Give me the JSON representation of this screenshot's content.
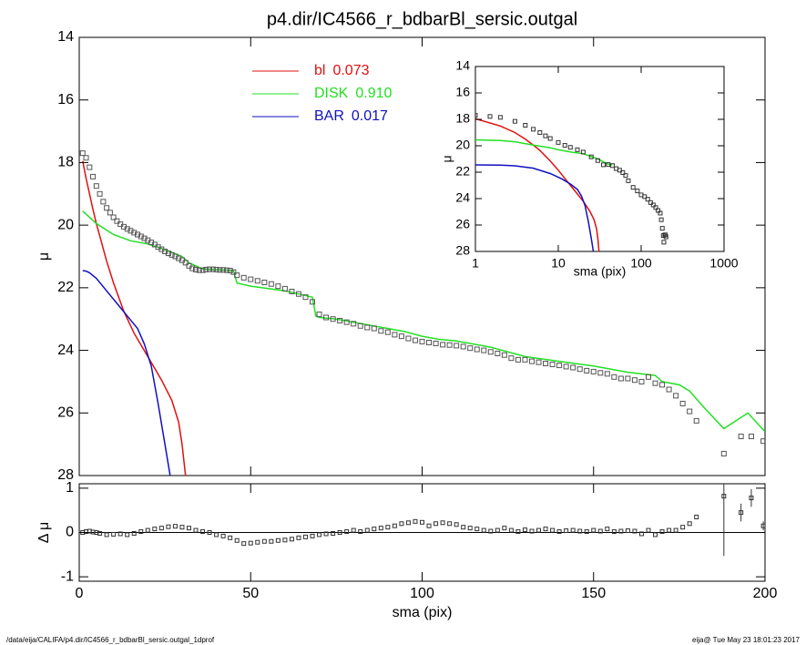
{
  "chart_data": [
    {
      "type": "line",
      "title": "p4.dir/IC4566_r_bdbarBl_sersic.outgal",
      "ylabel": "μ",
      "xlim": [
        0,
        200
      ],
      "xticks": [
        0,
        50,
        100,
        150,
        200
      ],
      "xtick_labels": false,
      "ylim": [
        14,
        28
      ],
      "yticks": [
        14,
        16,
        18,
        20,
        22,
        24,
        26,
        28
      ],
      "invert_y": true,
      "legend": "upper-center",
      "points": {
        "color": "#555555",
        "x": [
          1,
          2,
          3,
          4,
          5,
          6,
          7,
          8,
          9,
          10,
          11,
          12,
          13,
          14,
          15,
          16,
          17,
          18,
          19,
          20,
          21,
          22,
          23,
          24,
          25,
          26,
          27,
          28,
          29,
          30,
          31,
          32,
          33,
          34,
          35,
          36,
          37,
          38,
          39,
          40,
          41,
          42,
          43,
          44,
          45,
          46,
          48,
          50,
          52,
          54,
          56,
          58,
          60,
          62,
          64,
          66,
          68,
          70,
          72,
          74,
          76,
          78,
          80,
          82,
          84,
          86,
          88,
          90,
          92,
          94,
          96,
          98,
          100,
          102,
          104,
          106,
          108,
          110,
          112,
          114,
          116,
          118,
          120,
          122,
          124,
          126,
          128,
          130,
          132,
          134,
          136,
          138,
          140,
          142,
          144,
          146,
          148,
          150,
          152,
          154,
          156,
          158,
          160,
          162,
          164,
          166,
          168,
          170,
          172,
          174,
          176,
          178,
          180,
          188,
          193,
          196,
          199.5
        ],
        "values": [
          17.7,
          17.85,
          18.15,
          18.45,
          18.75,
          19.0,
          19.25,
          19.45,
          19.6,
          19.75,
          19.87,
          19.97,
          20.05,
          20.12,
          20.18,
          20.24,
          20.3,
          20.36,
          20.42,
          20.48,
          20.55,
          20.62,
          20.7,
          20.77,
          20.84,
          20.9,
          20.95,
          21.0,
          21.06,
          21.12,
          21.2,
          21.3,
          21.38,
          21.42,
          21.44,
          21.44,
          21.42,
          21.41,
          21.41,
          21.42,
          21.43,
          21.43,
          21.44,
          21.45,
          21.5,
          21.6,
          21.68,
          21.73,
          21.78,
          21.83,
          21.88,
          21.95,
          22.03,
          22.12,
          22.2,
          22.3,
          22.45,
          22.85,
          22.95,
          23.0,
          23.05,
          23.1,
          23.15,
          23.22,
          23.27,
          23.3,
          23.38,
          23.42,
          23.5,
          23.55,
          23.62,
          23.68,
          23.72,
          23.75,
          23.78,
          23.82,
          23.83,
          23.85,
          23.88,
          23.93,
          23.97,
          24.0,
          24.05,
          24.1,
          24.15,
          24.25,
          24.3,
          24.3,
          24.35,
          24.38,
          24.42,
          24.45,
          24.48,
          24.52,
          24.55,
          24.6,
          24.65,
          24.68,
          24.72,
          24.75,
          24.85,
          24.9,
          24.9,
          24.95,
          25.0,
          24.85,
          25.05,
          25.1,
          25.25,
          25.45,
          25.7,
          25.95,
          26.25,
          27.3,
          26.75,
          26.75,
          26.9
        ]
      },
      "series": [
        {
          "name": "bl",
          "fraction": 0.073,
          "fraction_label": "0.073",
          "color": "#e01010",
          "x": [
            1,
            2,
            3,
            4,
            5,
            6,
            8,
            10,
            13,
            16,
            20,
            24,
            27,
            29,
            30,
            31
          ],
          "values": [
            17.95,
            18.5,
            19.0,
            19.5,
            19.95,
            20.35,
            21.15,
            21.85,
            22.75,
            23.45,
            24.2,
            24.95,
            25.6,
            26.3,
            27.0,
            28.0
          ]
        },
        {
          "name": "DISK",
          "fraction": 0.91,
          "fraction_label": "0.910",
          "color": "#22e022",
          "x": [
            1,
            5,
            10,
            15,
            20,
            25,
            30,
            32,
            36,
            45,
            46,
            50,
            60,
            68,
            69,
            70,
            75,
            85,
            95,
            100,
            105,
            110,
            120,
            130,
            140,
            150,
            160,
            168,
            170,
            175,
            178,
            182,
            188,
            195,
            200
          ],
          "values": [
            19.55,
            19.95,
            20.3,
            20.5,
            20.6,
            20.78,
            21.0,
            21.2,
            21.4,
            21.45,
            21.85,
            21.95,
            22.1,
            22.3,
            22.9,
            22.95,
            23.0,
            23.2,
            23.4,
            23.55,
            23.65,
            23.7,
            23.9,
            24.2,
            24.35,
            24.5,
            24.7,
            24.8,
            25.0,
            25.1,
            25.3,
            25.8,
            26.5,
            26.0,
            26.6
          ]
        },
        {
          "name": "BAR",
          "fraction": 0.017,
          "fraction_label": "0.017",
          "color": "#1010c0",
          "x": [
            1,
            2,
            3,
            5,
            8,
            11,
            14,
            17,
            19,
            21,
            23,
            25,
            26.5
          ],
          "values": [
            21.45,
            21.47,
            21.52,
            21.7,
            22.1,
            22.5,
            22.9,
            23.3,
            23.8,
            24.5,
            25.7,
            27.0,
            28.0
          ]
        }
      ]
    },
    {
      "type": "scatter",
      "xlabel": "sma (pix)",
      "ylabel": "Δ μ",
      "xlim": [
        0,
        200
      ],
      "xticks": [
        0,
        50,
        100,
        150,
        200
      ],
      "xtick_labels": true,
      "ylim": [
        -1.1,
        1.1
      ],
      "yticks": [
        -1,
        0,
        1
      ],
      "reference_line": 0,
      "points": {
        "color": "#333333",
        "x": [
          1,
          2,
          3,
          4,
          5,
          6,
          8,
          10,
          12,
          14,
          16,
          18,
          20,
          22,
          24,
          26,
          28,
          30,
          32,
          34,
          36,
          38,
          40,
          42,
          44,
          46,
          48,
          50,
          52,
          54,
          56,
          58,
          60,
          62,
          64,
          66,
          68,
          70,
          72,
          74,
          76,
          78,
          80,
          82,
          84,
          86,
          88,
          90,
          92,
          94,
          96,
          98,
          100,
          102,
          104,
          106,
          108,
          110,
          112,
          114,
          116,
          118,
          120,
          122,
          124,
          126,
          128,
          130,
          132,
          134,
          136,
          138,
          140,
          142,
          144,
          146,
          148,
          150,
          152,
          154,
          156,
          158,
          160,
          162,
          164,
          166,
          168,
          170,
          172,
          174,
          176,
          178,
          180
        ],
        "values": [
          0.0,
          0.02,
          0.03,
          0.01,
          0,
          -0.02,
          -0.05,
          -0.04,
          -0.03,
          -0.05,
          -0.02,
          0.02,
          0.05,
          0.08,
          0.1,
          0.13,
          0.14,
          0.12,
          0.1,
          0.05,
          0.02,
          0,
          -0.05,
          -0.08,
          -0.12,
          -0.18,
          -0.25,
          -0.24,
          -0.22,
          -0.2,
          -0.2,
          -0.18,
          -0.17,
          -0.15,
          -0.12,
          -0.1,
          -0.08,
          -0.05,
          -0.03,
          -0.02,
          0,
          0.02,
          0.05,
          0.02,
          0.05,
          0.08,
          0.1,
          0.12,
          0.15,
          0.2,
          0.22,
          0.25,
          0.23,
          0.15,
          0.2,
          0.22,
          0.2,
          0.18,
          0.12,
          0.1,
          0.08,
          0.05,
          0.03,
          0.05,
          0.1,
          0.05,
          0.02,
          0.06,
          0.03,
          0.05,
          0.08,
          0.05,
          0.02,
          0.04,
          0.05,
          0.03,
          0.02,
          0.05,
          0.03,
          0.08,
          0.02,
          0.03,
          0.04,
          0.03,
          -0.03,
          0.05,
          -0.05,
          0.02,
          0.05,
          0.05,
          0.12,
          0.2,
          0.35
        ]
      },
      "error_bars": {
        "x": [
          188,
          193,
          196,
          199.5
        ],
        "values": [
          0.82,
          0.45,
          0.78,
          0.15
        ],
        "errors": [
          1.35,
          0.2,
          0.2,
          0.1
        ]
      }
    },
    {
      "type": "line",
      "xlabel": "sma (pix)",
      "ylabel": "μ",
      "xlog": true,
      "xlim": [
        1,
        1000
      ],
      "xticks": [
        1,
        10,
        100,
        1000
      ],
      "xtick_labels": true,
      "ylim": [
        14,
        28
      ],
      "yticks": [
        14,
        16,
        18,
        20,
        22,
        24,
        26,
        28
      ],
      "invert_y": true,
      "points": {
        "color": "#333333",
        "x": [
          1,
          1.5,
          2,
          3,
          4,
          5,
          6,
          7,
          8,
          10,
          12,
          14,
          17,
          20,
          25,
          30,
          35,
          40,
          45,
          50,
          55,
          60,
          65,
          70,
          80,
          90,
          100,
          110,
          120,
          130,
          140,
          150,
          160,
          170,
          175,
          180,
          185,
          188,
          193,
          196,
          199.5
        ],
        "values": [
          17.7,
          17.78,
          17.85,
          18.15,
          18.45,
          18.75,
          19.0,
          19.25,
          19.45,
          19.75,
          19.97,
          20.12,
          20.3,
          20.48,
          20.84,
          21.12,
          21.44,
          21.42,
          21.5,
          21.73,
          21.85,
          22.03,
          22.25,
          22.65,
          23.15,
          23.42,
          23.72,
          23.85,
          24.05,
          24.3,
          24.48,
          24.68,
          24.9,
          25.1,
          25.6,
          26.25,
          26.8,
          27.3,
          26.75,
          26.75,
          26.9
        ]
      },
      "series": [
        {
          "color": "#e01010",
          "x": [
            1,
            2,
            3,
            4,
            5,
            6,
            8,
            10,
            13,
            16,
            20,
            24,
            27,
            29,
            30,
            31
          ],
          "values": [
            17.95,
            18.5,
            19.0,
            19.5,
            19.95,
            20.35,
            21.15,
            21.85,
            22.75,
            23.45,
            24.2,
            24.95,
            25.6,
            26.3,
            27.0,
            28.0
          ]
        },
        {
          "color": "#22e022",
          "x": [
            1,
            2,
            3,
            5,
            8,
            10,
            15,
            20,
            30,
            40,
            45
          ],
          "values": [
            19.55,
            19.6,
            19.7,
            19.95,
            20.15,
            20.3,
            20.5,
            20.6,
            21.0,
            21.4,
            21.45
          ]
        },
        {
          "color": "#1010c0",
          "x": [
            1,
            2,
            3,
            5,
            8,
            11,
            14,
            17,
            19,
            21,
            23,
            25,
            26.5
          ],
          "values": [
            21.45,
            21.47,
            21.52,
            21.7,
            22.1,
            22.5,
            22.9,
            23.3,
            23.8,
            24.5,
            25.7,
            27.0,
            28.0
          ]
        }
      ]
    }
  ],
  "footer": {
    "left": "/data/eija/CALIFA/p4.dir/IC4566_r_bdbarBl_sersic.outgal_1dprof",
    "right": "eija@  Tue May 23 18:01:23 2017"
  }
}
